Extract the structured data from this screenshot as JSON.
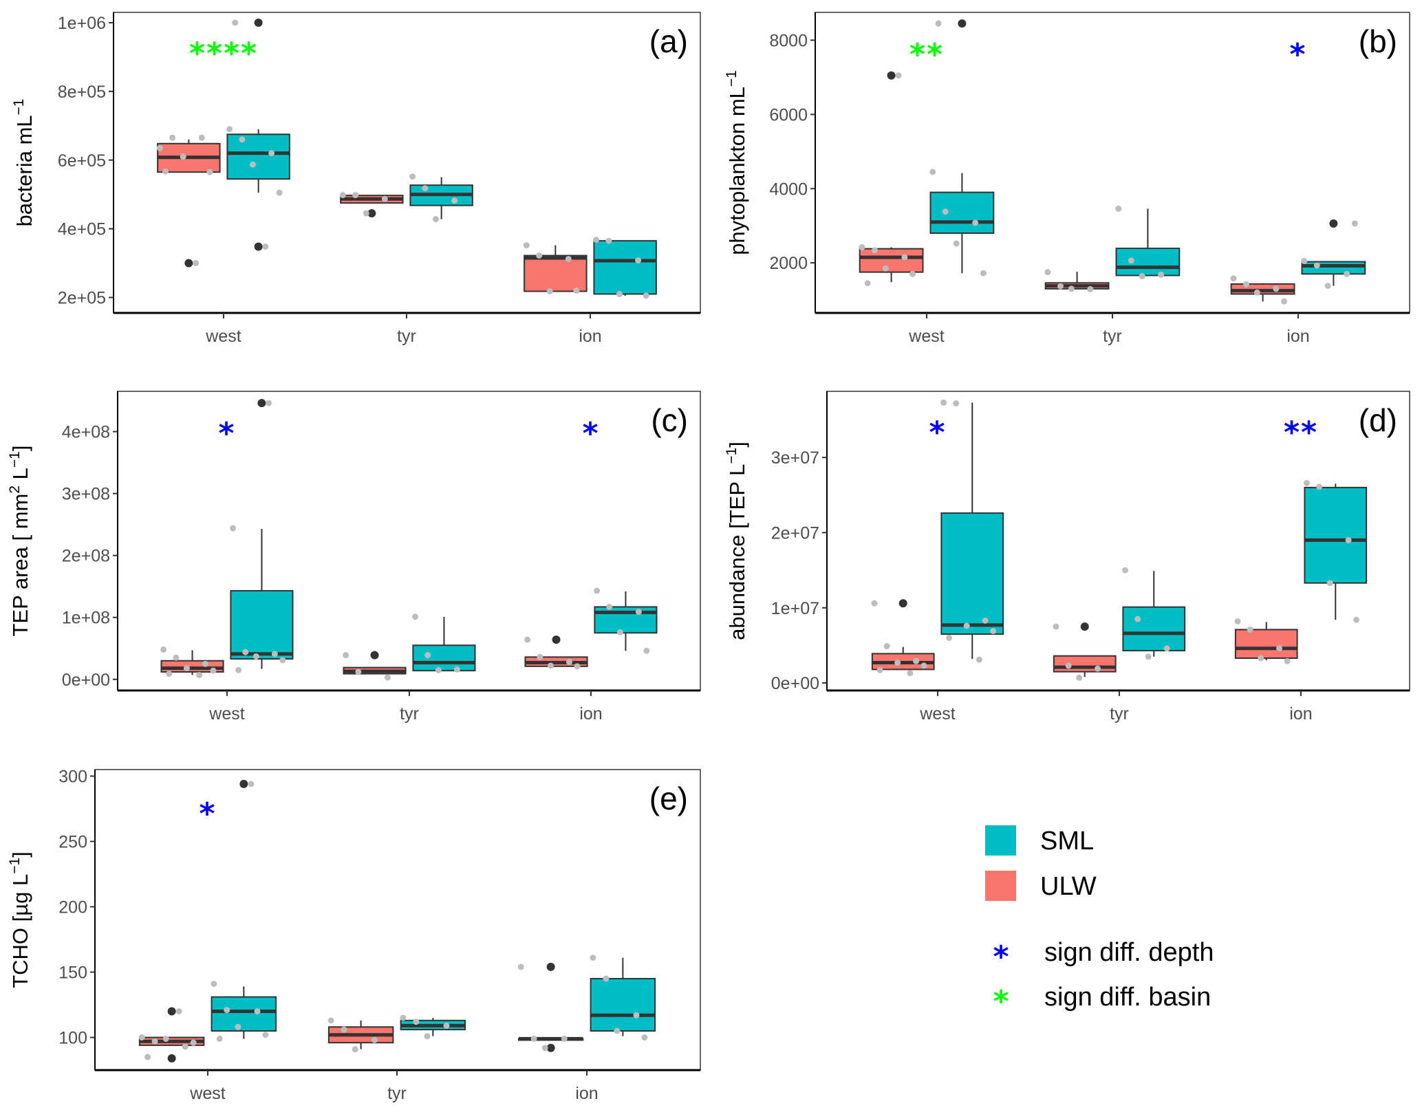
{
  "colors": {
    "SML": "#00BFC4",
    "ULW": "#F8766D",
    "depth_sig": "#0000FF",
    "basin_sig": "#00FF00",
    "jitter_point": "#BDBDBD",
    "outlier": "#333333"
  },
  "legend": {
    "fill_items": [
      {
        "key": "SML",
        "label": "SML"
      },
      {
        "key": "ULW",
        "label": "ULW"
      }
    ],
    "symbol_items": [
      {
        "key": "depth_sig",
        "symbol": "*",
        "label": "sign diff. depth"
      },
      {
        "key": "basin_sig",
        "symbol": "*",
        "label": "sign diff. basin"
      }
    ]
  },
  "chart_data": [
    {
      "id": "a",
      "type": "boxplot",
      "tag": "(a)",
      "ylabel": "bacteria mL",
      "ylabel_sup": "−1",
      "categories": [
        "west",
        "tyr",
        "ion"
      ],
      "ylim": [
        155000,
        1030000
      ],
      "yticks": [
        200000,
        400000,
        600000,
        800000,
        1000000
      ],
      "ytick_labels": [
        "2e+05",
        "4e+05",
        "6e+05",
        "8e+05",
        "1e+06"
      ],
      "series": [
        {
          "name": "ULW",
          "boxes": [
            {
              "q1": 565000,
              "median": 608000,
              "q3": 648000,
              "lo": 565000,
              "hi": 660000,
              "outliers": [
                300000
              ],
              "points": [
                635000,
                665000,
                665000,
                610000,
                565000,
                567000,
                300000
              ]
            },
            {
              "q1": 475000,
              "median": 487000,
              "q3": 497000,
              "lo": 475000,
              "hi": 497000,
              "outliers": [
                445000
              ],
              "points": [
                498000,
                498000,
                487000,
                445000
              ]
            },
            {
              "q1": 218000,
              "median": 315000,
              "q3": 322000,
              "lo": 218000,
              "hi": 352000,
              "outliers": [],
              "points": [
                352000,
                322000,
                312000,
                218000,
                220000
              ]
            }
          ]
        },
        {
          "name": "SML",
          "boxes": [
            {
              "q1": 545000,
              "median": 620000,
              "q3": 675000,
              "lo": 505000,
              "hi": 690000,
              "outliers": [
                1000000,
                348000
              ],
              "points": [
                690000,
                660000,
                620000,
                587000,
                505000,
                1000000,
                348000
              ]
            },
            {
              "q1": 468000,
              "median": 500000,
              "q3": 527000,
              "lo": 428000,
              "hi": 550000,
              "outliers": [],
              "points": [
                552000,
                518000,
                482000,
                428000
              ]
            },
            {
              "q1": 210000,
              "median": 307000,
              "q3": 365000,
              "lo": 205000,
              "hi": 365000,
              "outliers": [],
              "points": [
                368000,
                365000,
                308000,
                210000,
                205000
              ]
            }
          ]
        }
      ],
      "annotations": [
        {
          "category": "west",
          "text": "****",
          "color_key": "basin_sig",
          "y": 925000
        }
      ]
    },
    {
      "id": "b",
      "type": "boxplot",
      "tag": "(b)",
      "ylabel": "phytoplankton mL",
      "ylabel_sup": "−1",
      "categories": [
        "west",
        "tyr",
        "ion"
      ],
      "ylim": [
        650,
        8750
      ],
      "yticks": [
        2000,
        4000,
        6000,
        8000
      ],
      "ytick_labels": [
        "2000",
        "4000",
        "6000",
        "8000"
      ],
      "series": [
        {
          "name": "ULW",
          "boxes": [
            {
              "q1": 1750,
              "median": 2150,
              "q3": 2380,
              "lo": 1480,
              "hi": 2420,
              "outliers": [
                7050
              ],
              "points": [
                2420,
                2340,
                2150,
                1850,
                1700,
                1450,
                7050
              ]
            },
            {
              "q1": 1300,
              "median": 1380,
              "q3": 1460,
              "lo": 1300,
              "hi": 1760,
              "outliers": [],
              "points": [
                1750,
                1370,
                1290,
                1300
              ]
            },
            {
              "q1": 1160,
              "median": 1250,
              "q3": 1430,
              "lo": 960,
              "hi": 1450,
              "outliers": [],
              "points": [
                1580,
                1420,
                1300,
                1200,
                960
              ]
            }
          ]
        },
        {
          "name": "SML",
          "boxes": [
            {
              "q1": 2800,
              "median": 3100,
              "q3": 3900,
              "lo": 1720,
              "hi": 4420,
              "outliers": [
                8450
              ],
              "points": [
                4450,
                3380,
                3080,
                2520,
                1720,
                8450
              ]
            },
            {
              "q1": 1660,
              "median": 1880,
              "q3": 2390,
              "lo": 1660,
              "hi": 3460,
              "outliers": [],
              "points": [
                3460,
                2060,
                1680,
                1640
              ]
            },
            {
              "q1": 1700,
              "median": 1920,
              "q3": 2030,
              "lo": 1380,
              "hi": 2030,
              "outliers": [
                3060
              ],
              "points": [
                2050,
                1930,
                1700,
                1380,
                3060
              ]
            }
          ]
        }
      ],
      "annotations": [
        {
          "category": "west",
          "text": "**",
          "color_key": "basin_sig",
          "y": 7750
        },
        {
          "category": "ion",
          "text": "*",
          "color_key": "depth_sig",
          "y": 7750
        }
      ]
    },
    {
      "id": "c",
      "type": "boxplot",
      "tag": "(c)",
      "ylabel": "TEP area [ mm",
      "ylabel_sup": "2",
      "ylabel_tail": "  L",
      "ylabel_sup2": "−1",
      "ylabel_end": "]",
      "categories": [
        "west",
        "tyr",
        "ion"
      ],
      "ylim": [
        -18000000,
        465000000
      ],
      "yticks": [
        0,
        100000000,
        200000000,
        300000000,
        400000000
      ],
      "ytick_labels": [
        "0e+00",
        "1e+08",
        "2e+08",
        "3e+08",
        "4e+08"
      ],
      "series": [
        {
          "name": "ULW",
          "boxes": [
            {
              "q1": 12000000,
              "median": 18000000,
              "q3": 30000000,
              "lo": 7000000,
              "hi": 47000000,
              "outliers": [],
              "points": [
                48000000,
                35000000,
                25000000,
                18000000,
                14000000,
                9000000,
                7000000
              ]
            },
            {
              "q1": 9000000,
              "median": 13000000,
              "q3": 19000000,
              "lo": 9000000,
              "hi": 19000000,
              "outliers": [
                39000000
              ],
              "points": [
                39000000,
                12000000,
                3000000
              ]
            },
            {
              "q1": 21000000,
              "median": 27000000,
              "q3": 36000000,
              "lo": 21000000,
              "hi": 36000000,
              "outliers": [
                64000000
              ],
              "points": [
                64000000,
                36000000,
                28000000,
                22000000,
                21000000
              ]
            }
          ]
        },
        {
          "name": "SML",
          "boxes": [
            {
              "q1": 33000000,
              "median": 41000000,
              "q3": 143000000,
              "lo": 17000000,
              "hi": 243000000,
              "outliers": [
                446000000
              ],
              "points": [
                244000000,
                44000000,
                41000000,
                37000000,
                31000000,
                15000000,
                446000000
              ]
            },
            {
              "q1": 14000000,
              "median": 27000000,
              "q3": 55000000,
              "lo": 14000000,
              "hi": 101000000,
              "outliers": [],
              "points": [
                101000000,
                39000000,
                16000000,
                15000000
              ]
            },
            {
              "q1": 75000000,
              "median": 108000000,
              "q3": 117000000,
              "lo": 46000000,
              "hi": 142000000,
              "outliers": [],
              "points": [
                143000000,
                117000000,
                109000000,
                76000000,
                46000000
              ]
            }
          ]
        }
      ],
      "annotations": [
        {
          "category": "west",
          "text": "*",
          "color_key": "depth_sig",
          "y": 405000000
        },
        {
          "category": "ion",
          "text": "*",
          "color_key": "depth_sig",
          "y": 405000000
        }
      ]
    },
    {
      "id": "d",
      "type": "boxplot",
      "tag": "(d)",
      "ylabel": "abundance [TEP  L",
      "ylabel_sup": "−1",
      "ylabel_end": "]",
      "categories": [
        "west",
        "tyr",
        "ion"
      ],
      "ylim": [
        -1000000,
        38800000
      ],
      "yticks": [
        0,
        10000000,
        20000000,
        30000000
      ],
      "ytick_labels": [
        "0e+00",
        "1e+07",
        "2e+07",
        "3e+07"
      ],
      "series": [
        {
          "name": "ULW",
          "boxes": [
            {
              "q1": 1800000,
              "median": 2700000,
              "q3": 3900000,
              "lo": 1800000,
              "hi": 4800000,
              "outliers": [
                10600000
              ],
              "points": [
                10600000,
                4900000,
                2900000,
                2700000,
                2300000,
                1700000,
                1300000
              ]
            },
            {
              "q1": 1500000,
              "median": 2100000,
              "q3": 3600000,
              "lo": 800000,
              "hi": 3600000,
              "outliers": [
                7500000
              ],
              "points": [
                7500000,
                2300000,
                1900000,
                700000
              ]
            },
            {
              "q1": 3300000,
              "median": 4600000,
              "q3": 7100000,
              "lo": 3000000,
              "hi": 8100000,
              "outliers": [],
              "points": [
                8200000,
                7100000,
                4600000,
                3300000,
                2900000
              ]
            }
          ]
        },
        {
          "name": "SML",
          "boxes": [
            {
              "q1": 6500000,
              "median": 7700000,
              "q3": 22600000,
              "lo": 3200000,
              "hi": 37300000,
              "outliers": [],
              "points": [
                37300000,
                37200000,
                8300000,
                7600000,
                6900000,
                6000000,
                3100000
              ]
            },
            {
              "q1": 4300000,
              "median": 6600000,
              "q3": 10100000,
              "lo": 3500000,
              "hi": 14900000,
              "outliers": [],
              "points": [
                15000000,
                8500000,
                4600000,
                3500000
              ]
            },
            {
              "q1": 13300000,
              "median": 19000000,
              "q3": 26000000,
              "lo": 8400000,
              "hi": 26500000,
              "outliers": [],
              "points": [
                26600000,
                26100000,
                19000000,
                13300000,
                8400000
              ]
            }
          ]
        }
      ],
      "annotations": [
        {
          "category": "west",
          "text": "*",
          "color_key": "depth_sig",
          "y": 34000000
        },
        {
          "category": "ion",
          "text": "**",
          "color_key": "depth_sig",
          "y": 34000000
        }
      ]
    },
    {
      "id": "e",
      "type": "boxplot",
      "tag": "(e)",
      "ylabel": "TCHO [µg  L",
      "ylabel_sup": "−1",
      "ylabel_end": "]",
      "categories": [
        "west",
        "tyr",
        "ion"
      ],
      "ylim": [
        75,
        305
      ],
      "yticks": [
        100,
        150,
        200,
        250,
        300
      ],
      "ytick_labels": [
        "100",
        "150",
        "200",
        "250",
        "300"
      ],
      "series": [
        {
          "name": "ULW",
          "boxes": [
            {
              "q1": 94,
              "median": 97,
              "q3": 100,
              "lo": 94,
              "hi": 100,
              "outliers": [
                120,
                84
              ],
              "points": [
                100,
                97,
                93,
                99,
                96,
                85,
                120
              ]
            },
            {
              "q1": 96,
              "median": 102,
              "q3": 108,
              "lo": 91,
              "hi": 113,
              "outliers": [],
              "points": [
                113,
                106,
                98,
                91
              ]
            },
            {
              "q1": 99,
              "median": 99,
              "q3": 99,
              "lo": 99,
              "hi": 99,
              "outliers": [
                154,
                92
              ],
              "points": [
                154,
                99,
                99,
                92
              ]
            }
          ]
        },
        {
          "name": "SML",
          "boxes": [
            {
              "q1": 105,
              "median": 120,
              "q3": 131,
              "lo": 99,
              "hi": 139,
              "outliers": [
                294
              ],
              "points": [
                141,
                121,
                120,
                108,
                102,
                99,
                294
              ]
            },
            {
              "q1": 106,
              "median": 109,
              "q3": 113,
              "lo": 101,
              "hi": 115,
              "outliers": [],
              "points": [
                115,
                112,
                109,
                101
              ]
            },
            {
              "q1": 105,
              "median": 117,
              "q3": 145,
              "lo": 101,
              "hi": 161,
              "outliers": [],
              "points": [
                161,
                145,
                117,
                105,
                100
              ]
            }
          ]
        }
      ],
      "annotations": [
        {
          "category": "west",
          "text": "*",
          "color_key": "depth_sig",
          "y": 275
        }
      ]
    }
  ]
}
